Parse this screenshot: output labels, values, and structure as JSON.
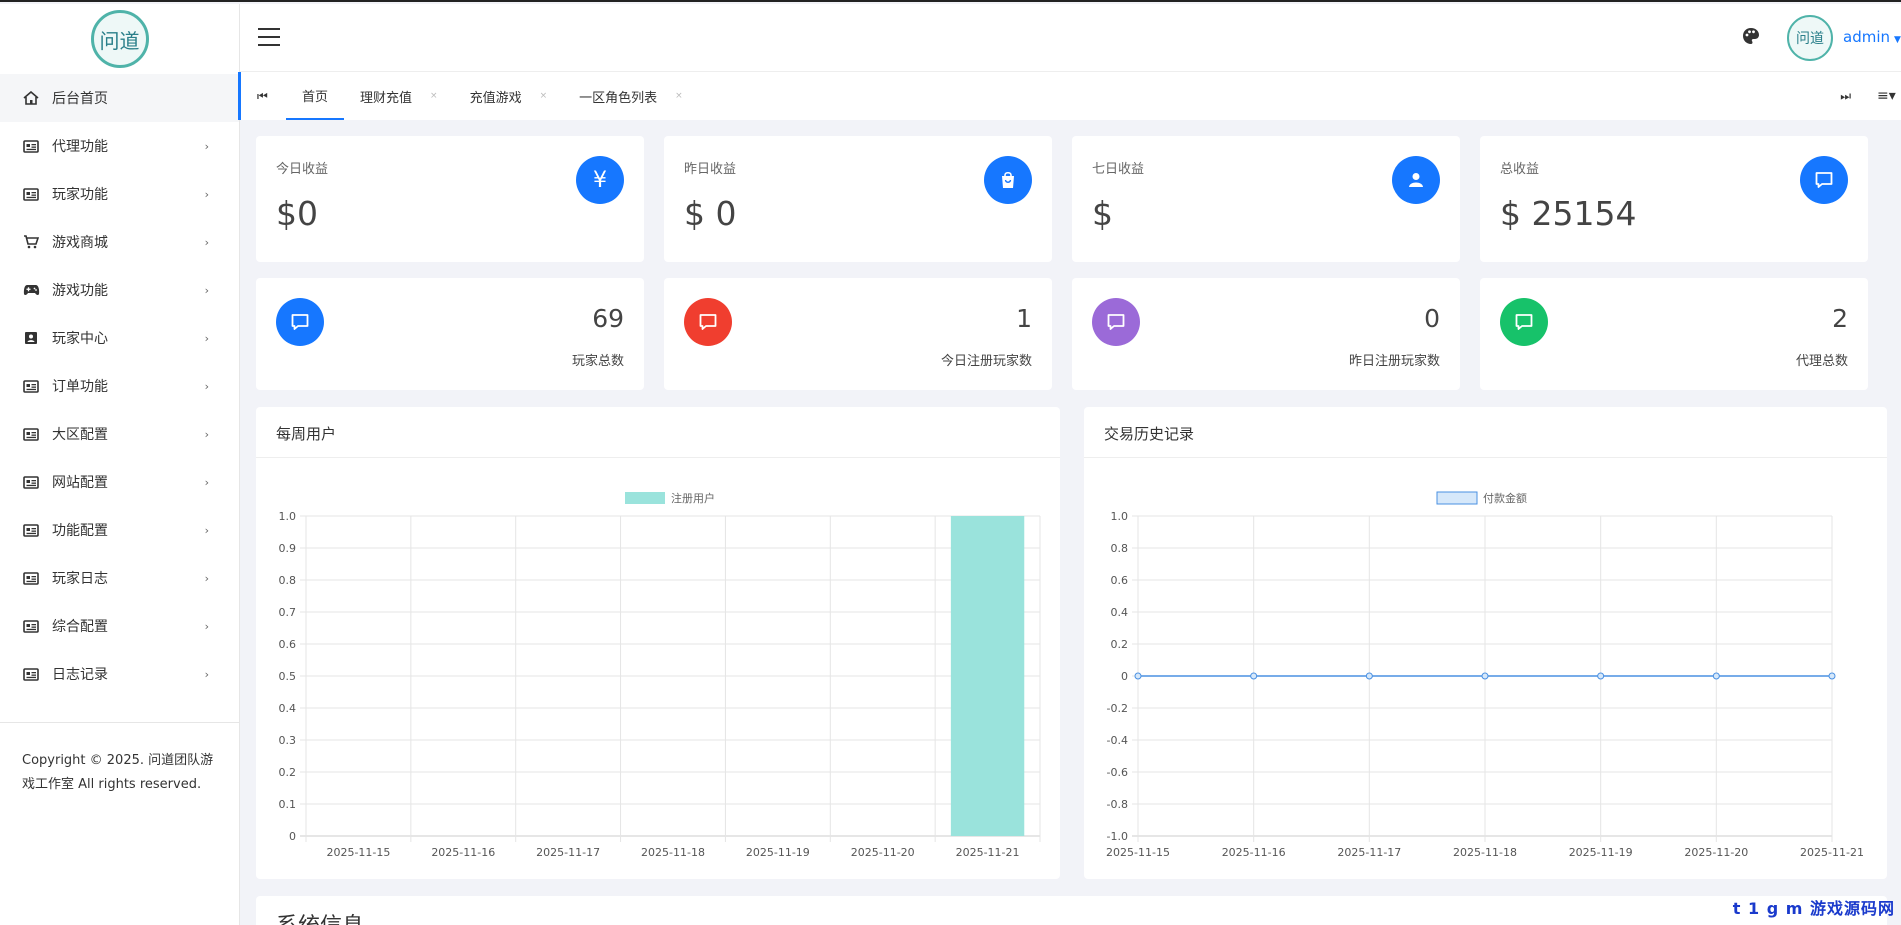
{
  "sidebar": {
    "logo_text": "问道",
    "items": [
      {
        "label": "后台首页",
        "icon": "home-icon",
        "active": true,
        "has_children": false
      },
      {
        "label": "代理功能",
        "icon": "list-icon",
        "has_children": true
      },
      {
        "label": "玩家功能",
        "icon": "list-icon",
        "has_children": true
      },
      {
        "label": "游戏商城",
        "icon": "cart-icon",
        "has_children": true
      },
      {
        "label": "游戏功能",
        "icon": "gamepad-icon",
        "has_children": true
      },
      {
        "label": "玩家中心",
        "icon": "contact-icon",
        "has_children": true
      },
      {
        "label": "订单功能",
        "icon": "list-icon",
        "has_children": true
      },
      {
        "label": "大区配置",
        "icon": "list-icon",
        "has_children": true
      },
      {
        "label": "网站配置",
        "icon": "list-icon",
        "has_children": true
      },
      {
        "label": "功能配置",
        "icon": "list-icon",
        "has_children": true
      },
      {
        "label": "玩家日志",
        "icon": "list-icon",
        "has_children": true
      },
      {
        "label": "综合配置",
        "icon": "list-icon",
        "has_children": true
      },
      {
        "label": "日志记录",
        "icon": "list-icon",
        "has_children": true
      }
    ],
    "footer_line1": "Copyright © 2025. 问道团队游",
    "footer_line2": "戏工作室 All rights reserved."
  },
  "header": {
    "user_name": "admin",
    "avatar_text": "问道"
  },
  "tabs": [
    {
      "label": "首页",
      "active": true,
      "closable": false
    },
    {
      "label": "理财充值",
      "closable": true
    },
    {
      "label": "充值游戏",
      "closable": true
    },
    {
      "label": "一区角色列表",
      "closable": true
    }
  ],
  "tab_close_glyph": "×",
  "revenue_cards": [
    {
      "label": "今日收益",
      "value": "$0",
      "icon": "yen-icon",
      "icon_glyph": "¥",
      "color": "#1677ff"
    },
    {
      "label": "昨日收益",
      "value": "$ 0",
      "icon": "bag-icon",
      "icon_glyph": "",
      "color": "#1677ff"
    },
    {
      "label": "七日收益",
      "value": "$",
      "icon": "user-icon",
      "icon_glyph": "",
      "color": "#1677ff"
    },
    {
      "label": "总收益",
      "value": "$ 25154",
      "icon": "message-icon",
      "icon_glyph": "",
      "color": "#1677ff"
    }
  ],
  "count_cards": [
    {
      "label": "玩家总数",
      "value": "69",
      "icon": "message-icon",
      "color": "#1677ff"
    },
    {
      "label": "今日注册玩家数",
      "value": "1",
      "icon": "message-icon",
      "color": "#f03e2f"
    },
    {
      "label": "昨日注册玩家数",
      "value": "0",
      "icon": "message-icon",
      "color": "#9b6ad8"
    },
    {
      "label": "代理总数",
      "value": "2",
      "icon": "message-icon",
      "color": "#17c26a"
    }
  ],
  "panels": {
    "weekly_title": "每周用户",
    "history_title": "交易历史记录",
    "system_title": "系统信息"
  },
  "watermark": "t 1 g m 游戏源码网",
  "chart_data": [
    {
      "type": "bar",
      "title": "",
      "categories": [
        "2025-11-15",
        "2025-11-16",
        "2025-11-17",
        "2025-11-18",
        "2025-11-19",
        "2025-11-20",
        "2025-11-21"
      ],
      "series": [
        {
          "name": "注册用户",
          "values": [
            0,
            0,
            0,
            0,
            0,
            0,
            1
          ],
          "color": "#9ae3dc"
        }
      ],
      "ylim": [
        0,
        1.0
      ],
      "yticks": [
        "1.0",
        "0.9",
        "0.8",
        "0.7",
        "0.6",
        "0.5",
        "0.4",
        "0.3",
        "0.2",
        "0.1",
        "0"
      ],
      "grid": true,
      "legend": "top-center"
    },
    {
      "type": "line",
      "title": "",
      "categories": [
        "2025-11-15",
        "2025-11-16",
        "2025-11-17",
        "2025-11-18",
        "2025-11-19",
        "2025-11-20",
        "2025-11-21"
      ],
      "series": [
        {
          "name": "付款金额",
          "values": [
            0,
            0,
            0,
            0,
            0,
            0,
            0
          ],
          "color": "#4a90e2",
          "fill": "#d6e8fa"
        }
      ],
      "ylim": [
        -1.0,
        1.0
      ],
      "yticks": [
        "1.0",
        "0.8",
        "0.6",
        "0.4",
        "0.2",
        "0",
        "-0.2",
        "-0.4",
        "-0.6",
        "-0.8",
        "-1.0"
      ],
      "grid": true,
      "legend": "top-center"
    }
  ]
}
